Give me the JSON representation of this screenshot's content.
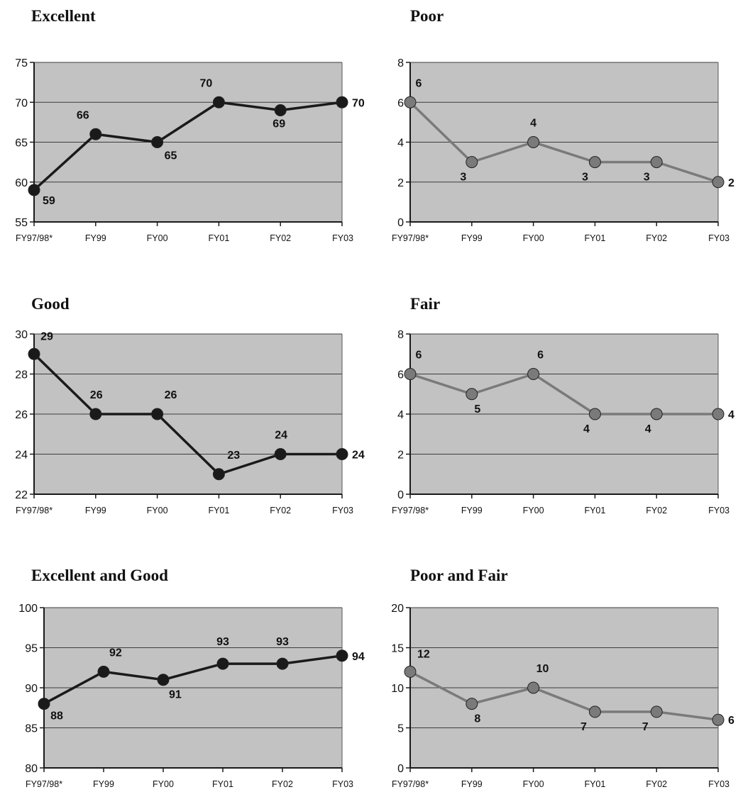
{
  "colors": {
    "plot_background": "#c2c2c2",
    "gridline": "#3c3c3c",
    "axis": "#1a1a1a",
    "series_dark": "#1a1a1a",
    "series_gray": "#7a7a7a"
  },
  "chart_data": [
    {
      "type": "line",
      "title": "Excellent",
      "categories": [
        "FY97/98*",
        "FY99",
        "FY00",
        "FY01",
        "FY02",
        "FY03"
      ],
      "values": [
        59,
        66,
        65,
        70,
        69,
        70
      ],
      "labels": [
        "59",
        "66",
        "65",
        "70",
        "69",
        "70"
      ],
      "ylim": [
        55,
        75
      ],
      "yticks": [
        55,
        60,
        65,
        70,
        75
      ],
      "ytick_labels": [
        "55",
        "60",
        "65",
        "70",
        "75"
      ],
      "grid": true,
      "line_color": "#1a1a1a"
    },
    {
      "type": "line",
      "title": "Poor",
      "categories": [
        "FY97/98*",
        "FY99",
        "FY00",
        "FY01",
        "FY02",
        "FY03"
      ],
      "values": [
        6,
        3,
        4,
        3,
        3,
        2
      ],
      "labels": [
        "6",
        "3",
        "4",
        "3",
        "3",
        "2"
      ],
      "ylim": [
        0,
        8
      ],
      "yticks": [
        0,
        2,
        4,
        6,
        8
      ],
      "ytick_labels": [
        "0",
        "2",
        "4",
        "6",
        "8"
      ],
      "grid": true,
      "line_color": "#7a7a7a"
    },
    {
      "type": "line",
      "title": "Good",
      "categories": [
        "FY97/98*",
        "FY99",
        "FY00",
        "FY01",
        "FY02",
        "FY03"
      ],
      "values": [
        29,
        26,
        26,
        23,
        24,
        24
      ],
      "labels": [
        "29",
        "26",
        "26",
        "23",
        "24",
        "24"
      ],
      "ylim": [
        22,
        30
      ],
      "yticks": [
        22,
        24,
        26,
        28,
        30
      ],
      "ytick_labels": [
        "22",
        "24",
        "26",
        "28",
        "30"
      ],
      "grid": true,
      "line_color": "#1a1a1a"
    },
    {
      "type": "line",
      "title": "Fair",
      "categories": [
        "FY97/98*",
        "FY99",
        "FY00",
        "FY01",
        "FY02",
        "FY03"
      ],
      "values": [
        6,
        5,
        6,
        4,
        4,
        4
      ],
      "labels": [
        "6",
        "5",
        "6",
        "4",
        "4",
        "4"
      ],
      "ylim": [
        0,
        8
      ],
      "yticks": [
        0,
        2,
        4,
        6,
        8
      ],
      "ytick_labels": [
        "0",
        "2",
        "4",
        "6",
        "8"
      ],
      "grid": true,
      "line_color": "#7a7a7a"
    },
    {
      "type": "line",
      "title": "Excellent and Good",
      "categories": [
        "FY97/98*",
        "FY99",
        "FY00",
        "FY01",
        "FY02",
        "FY03"
      ],
      "values": [
        88,
        92,
        91,
        93,
        93,
        94
      ],
      "labels": [
        "88",
        "92",
        "91",
        "93",
        "93",
        "94"
      ],
      "ylim": [
        80,
        100
      ],
      "yticks": [
        80,
        85,
        90,
        95,
        100
      ],
      "ytick_labels": [
        "80",
        "85",
        "90",
        "95",
        "100"
      ],
      "grid": true,
      "line_color": "#1a1a1a"
    },
    {
      "type": "line",
      "title": "Poor and Fair",
      "categories": [
        "FY97/98*",
        "FY99",
        "FY00",
        "FY01",
        "FY02",
        "FY03"
      ],
      "values": [
        12,
        8,
        10,
        7,
        7,
        6
      ],
      "labels": [
        "12",
        "8",
        "10",
        "7",
        "7",
        "6"
      ],
      "ylim": [
        0,
        20
      ],
      "yticks": [
        0,
        5,
        10,
        15,
        20
      ],
      "ytick_labels": [
        "0",
        "5",
        "10",
        "15",
        "20"
      ],
      "grid": true,
      "line_color": "#7a7a7a"
    }
  ]
}
